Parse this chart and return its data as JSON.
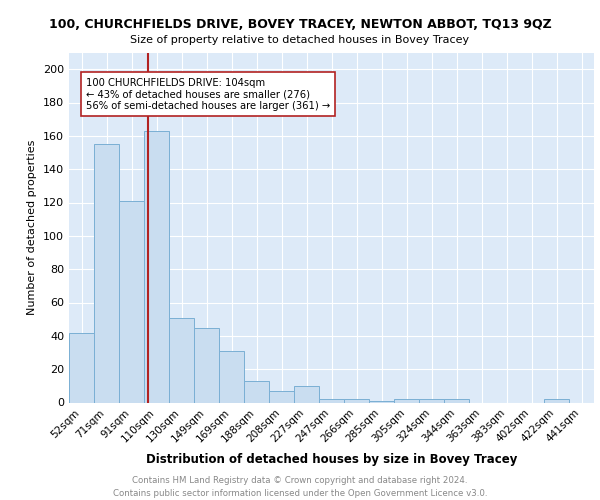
{
  "title1": "100, CHURCHFIELDS DRIVE, BOVEY TRACEY, NEWTON ABBOT, TQ13 9QZ",
  "title2": "Size of property relative to detached houses in Bovey Tracey",
  "xlabel": "Distribution of detached houses by size in Bovey Tracey",
  "ylabel": "Number of detached properties",
  "categories": [
    "52sqm",
    "71sqm",
    "91sqm",
    "110sqm",
    "130sqm",
    "149sqm",
    "169sqm",
    "188sqm",
    "208sqm",
    "227sqm",
    "247sqm",
    "266sqm",
    "285sqm",
    "305sqm",
    "324sqm",
    "344sqm",
    "363sqm",
    "383sqm",
    "402sqm",
    "422sqm",
    "441sqm"
  ],
  "values": [
    42,
    155,
    121,
    163,
    51,
    45,
    31,
    13,
    7,
    10,
    2,
    2,
    1,
    2,
    2,
    2,
    0,
    0,
    0,
    2,
    0
  ],
  "bar_color": "#c9ddf0",
  "bar_edge_color": "#7aafd4",
  "vline_x": 2.67,
  "vline_color": "#b22222",
  "annotation_text": "100 CHURCHFIELDS DRIVE: 104sqm\n← 43% of detached houses are smaller (276)\n56% of semi-detached houses are larger (361) →",
  "annotation_box_color": "white",
  "annotation_box_edge": "#b22222",
  "ylim": [
    0,
    210
  ],
  "yticks": [
    0,
    20,
    40,
    60,
    80,
    100,
    120,
    140,
    160,
    180,
    200
  ],
  "footer": "Contains HM Land Registry data © Crown copyright and database right 2024.\nContains public sector information licensed under the Open Government Licence v3.0.",
  "bg_color": "#ddeaf8",
  "grid_color": "#ffffff"
}
